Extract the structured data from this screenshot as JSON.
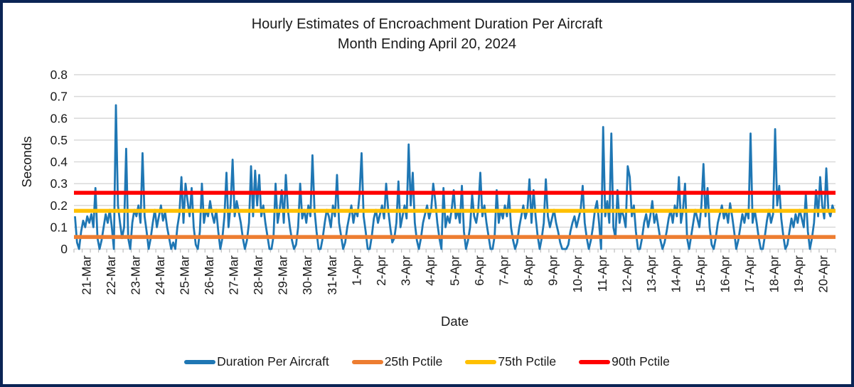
{
  "chart_data": {
    "type": "line",
    "title": "Hourly Estimates of Encroachment Duration Per Aircraft",
    "subtitle": "Month Ending April 20, 2024",
    "xlabel": "Date",
    "ylabel": "Seconds",
    "ylim": [
      0,
      0.8
    ],
    "ytick_labels": [
      "0",
      "0.1",
      "0.2",
      "0.3",
      "0.4",
      "0.5",
      "0.6",
      "0.7",
      "0.8"
    ],
    "grid": "horizontal",
    "legend_position": "bottom",
    "x_categories": [
      "21-Mar",
      "22-Mar",
      "23-Mar",
      "24-Mar",
      "25-Mar",
      "26-Mar",
      "27-Mar",
      "28-Mar",
      "29-Mar",
      "30-Mar",
      "31-Mar",
      "1-Apr",
      "2-Apr",
      "3-Apr",
      "4-Apr",
      "5-Apr",
      "6-Apr",
      "7-Apr",
      "8-Apr",
      "9-Apr",
      "10-Apr",
      "11-Apr",
      "12-Apr",
      "13-Apr",
      "14-Apr",
      "15-Apr",
      "16-Apr",
      "17-Apr",
      "18-Apr",
      "19-Apr",
      "20-Apr"
    ],
    "samples_per_day": 12,
    "sample_interval_hours": 2,
    "series": [
      {
        "name": "Duration Per Aircraft",
        "kind": "line",
        "color": "#1F77B4",
        "values": [
          0.15,
          0.03,
          0.0,
          0.08,
          0.13,
          0.1,
          0.15,
          0.12,
          0.16,
          0.1,
          0.28,
          0.05,
          0.0,
          0.04,
          0.1,
          0.16,
          0.12,
          0.18,
          0.1,
          0.0,
          0.66,
          0.2,
          0.12,
          0.05,
          0.1,
          0.46,
          0.05,
          0.0,
          0.12,
          0.18,
          0.15,
          0.2,
          0.12,
          0.44,
          0.15,
          0.08,
          0.0,
          0.05,
          0.12,
          0.18,
          0.1,
          0.15,
          0.2,
          0.13,
          0.17,
          0.1,
          0.05,
          0.0,
          0.03,
          0.0,
          0.1,
          0.16,
          0.33,
          0.12,
          0.3,
          0.22,
          0.15,
          0.28,
          0.1,
          0.02,
          0.0,
          0.08,
          0.3,
          0.12,
          0.18,
          0.15,
          0.22,
          0.16,
          0.12,
          0.18,
          0.08,
          0.0,
          0.05,
          0.15,
          0.35,
          0.1,
          0.2,
          0.41,
          0.15,
          0.22,
          0.17,
          0.12,
          0.05,
          0.0,
          0.04,
          0.12,
          0.38,
          0.15,
          0.36,
          0.2,
          0.34,
          0.15,
          0.2,
          0.12,
          0.06,
          0.0,
          0.0,
          0.06,
          0.3,
          0.12,
          0.18,
          0.27,
          0.12,
          0.34,
          0.18,
          0.1,
          0.04,
          0.0,
          0.02,
          0.1,
          0.3,
          0.14,
          0.18,
          0.12,
          0.2,
          0.15,
          0.43,
          0.18,
          0.08,
          0.0,
          0.0,
          0.05,
          0.12,
          0.18,
          0.15,
          0.1,
          0.2,
          0.15,
          0.34,
          0.12,
          0.06,
          0.0,
          0.03,
          0.1,
          0.15,
          0.2,
          0.12,
          0.18,
          0.15,
          0.25,
          0.44,
          0.15,
          0.08,
          0.0,
          0.0,
          0.06,
          0.14,
          0.18,
          0.12,
          0.16,
          0.2,
          0.14,
          0.3,
          0.18,
          0.1,
          0.03,
          0.05,
          0.12,
          0.31,
          0.1,
          0.15,
          0.2,
          0.14,
          0.48,
          0.2,
          0.35,
          0.12,
          0.04,
          0.0,
          0.05,
          0.12,
          0.16,
          0.2,
          0.14,
          0.18,
          0.3,
          0.22,
          0.12,
          0.05,
          0.0,
          0.28,
          0.1,
          0.15,
          0.12,
          0.18,
          0.27,
          0.14,
          0.18,
          0.12,
          0.29,
          0.08,
          0.0,
          0.04,
          0.1,
          0.25,
          0.15,
          0.12,
          0.18,
          0.35,
          0.15,
          0.2,
          0.12,
          0.06,
          0.0,
          0.0,
          0.06,
          0.27,
          0.12,
          0.18,
          0.14,
          0.2,
          0.15,
          0.25,
          0.1,
          0.04,
          0.0,
          0.03,
          0.1,
          0.15,
          0.2,
          0.14,
          0.18,
          0.32,
          0.12,
          0.27,
          0.15,
          0.06,
          0.0,
          0.05,
          0.12,
          0.32,
          0.15,
          0.1,
          0.14,
          0.18,
          0.12,
          0.08,
          0.03,
          0.0,
          0.0,
          0.0,
          0.02,
          0.08,
          0.12,
          0.15,
          0.1,
          0.14,
          0.18,
          0.29,
          0.12,
          0.05,
          0.0,
          0.04,
          0.1,
          0.18,
          0.22,
          0.12,
          0.0,
          0.56,
          0.15,
          0.22,
          0.12,
          0.53,
          0.1,
          0.05,
          0.27,
          0.12,
          0.18,
          0.15,
          0.1,
          0.38,
          0.33,
          0.15,
          0.2,
          0.08,
          0.0,
          0.0,
          0.05,
          0.12,
          0.16,
          0.1,
          0.15,
          0.22,
          0.12,
          0.16,
          0.1,
          0.04,
          0.0,
          0.03,
          0.08,
          0.14,
          0.18,
          0.12,
          0.2,
          0.15,
          0.33,
          0.12,
          0.18,
          0.3,
          0.05,
          0.0,
          0.06,
          0.12,
          0.18,
          0.14,
          0.1,
          0.2,
          0.39,
          0.15,
          0.28,
          0.1,
          0.02,
          0.0,
          0.05,
          0.12,
          0.16,
          0.2,
          0.14,
          0.18,
          0.12,
          0.21,
          0.15,
          0.08,
          0.0,
          0.04,
          0.1,
          0.16,
          0.12,
          0.18,
          0.14,
          0.53,
          0.12,
          0.18,
          0.12,
          0.05,
          0.0,
          0.0,
          0.06,
          0.13,
          0.18,
          0.12,
          0.16,
          0.55,
          0.2,
          0.29,
          0.14,
          0.06,
          0.0,
          0.02,
          0.08,
          0.14,
          0.1,
          0.16,
          0.12,
          0.18,
          0.14,
          0.1,
          0.25,
          0.08,
          0.0,
          0.05,
          0.12,
          0.27,
          0.15,
          0.33,
          0.2,
          0.14,
          0.37,
          0.18,
          0.15,
          0.2,
          0.17
        ]
      },
      {
        "name": "25th Pctile",
        "kind": "constant",
        "color": "#ED7D31",
        "value": 0.055
      },
      {
        "name": "75th Pctile",
        "kind": "constant",
        "color": "#FFC000",
        "value": 0.175
      },
      {
        "name": "90th Pctile",
        "kind": "constant",
        "color": "#FF0000",
        "value": 0.258
      }
    ]
  },
  "colors": {
    "frame_border": "#0A2455",
    "gridline": "#D9D9D9",
    "tick": "#BFBFBF",
    "text": "#1A1A1A"
  }
}
